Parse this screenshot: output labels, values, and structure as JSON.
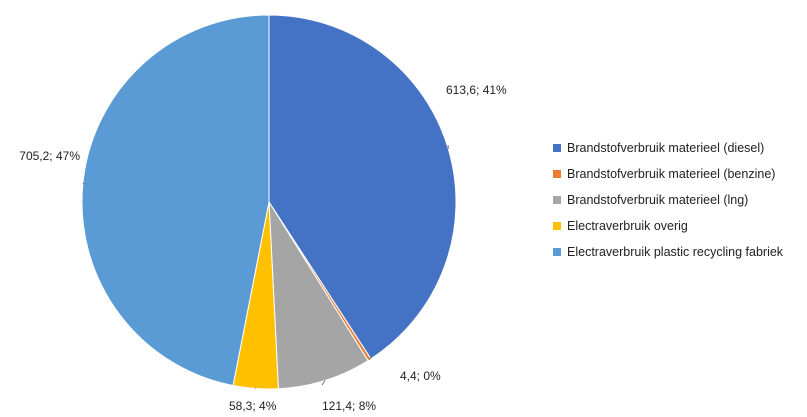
{
  "chart_data": {
    "type": "pie",
    "title": "",
    "start_angle_deg": 0,
    "direction": "clockwise",
    "legend_position": "right",
    "slices": [
      {
        "label": "Brandstofverbruik materieel (diesel)",
        "value": 613.6,
        "data_label": "613,6; 41%",
        "color": "#4472C4"
      },
      {
        "label": "Brandstofverbruik materieel (benzine)",
        "value": 4.4,
        "data_label": "4,4; 0%",
        "color": "#ED7D31"
      },
      {
        "label": "Brandstofverbruik materieel (lng)",
        "value": 121.4,
        "data_label": "121,4; 8%",
        "color": "#A5A5A5"
      },
      {
        "label": "Electraverbruik overig",
        "value": 58.3,
        "data_label": "58,3; 4%",
        "color": "#FFC000"
      },
      {
        "label": "Electraverbruik plastic recycling fabriek",
        "value": 705.2,
        "data_label": "705,2; 47%",
        "color": "#5B9BD5"
      }
    ]
  }
}
